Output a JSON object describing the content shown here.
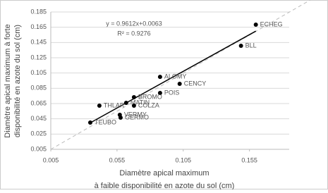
{
  "chart_data": {
    "type": "scatter",
    "x_label": [
      "Diamètre apical maximum",
      "à faible disponibilité en azote du sol (cm)"
    ],
    "y_label": [
      "Diamètre apical maximum à forte",
      "disponibilité en azote du sol (cm)"
    ],
    "labels": [
      "ECHEG",
      "BLL",
      "ALOMY",
      "CENCY",
      "POIS",
      "BROMO",
      "MATIN",
      "COLZA",
      "THLAR",
      "VERMY",
      "GERMO",
      "TEUBO"
    ],
    "x": [
      0.1598,
      0.1486,
      0.0875,
      0.1023,
      0.0875,
      0.0678,
      0.0619,
      0.0678,
      0.0417,
      0.0571,
      0.0577,
      0.0348
    ],
    "y": [
      0.1684,
      0.1407,
      0.1,
      0.0908,
      0.0788,
      0.0733,
      0.0659,
      0.0622,
      0.0622,
      0.0502,
      0.0465,
      0.0401
    ],
    "color": "#000000",
    "trendline": {
      "label": "y = 0.9612x+0.0063",
      "r2_label": "R² = 0.9276",
      "slope": 0.9612,
      "intercept": 0.0063
    },
    "xlim": [
      0.005,
      0.185
    ],
    "ylim": [
      0.005,
      0.185
    ],
    "xticks": [
      0.005,
      0.055,
      0.105,
      0.155
    ],
    "yticks": [
      0.005,
      0.025,
      0.045,
      0.065,
      0.085,
      0.105,
      0.125,
      0.145,
      0.165,
      0.185
    ],
    "grid": true
  }
}
